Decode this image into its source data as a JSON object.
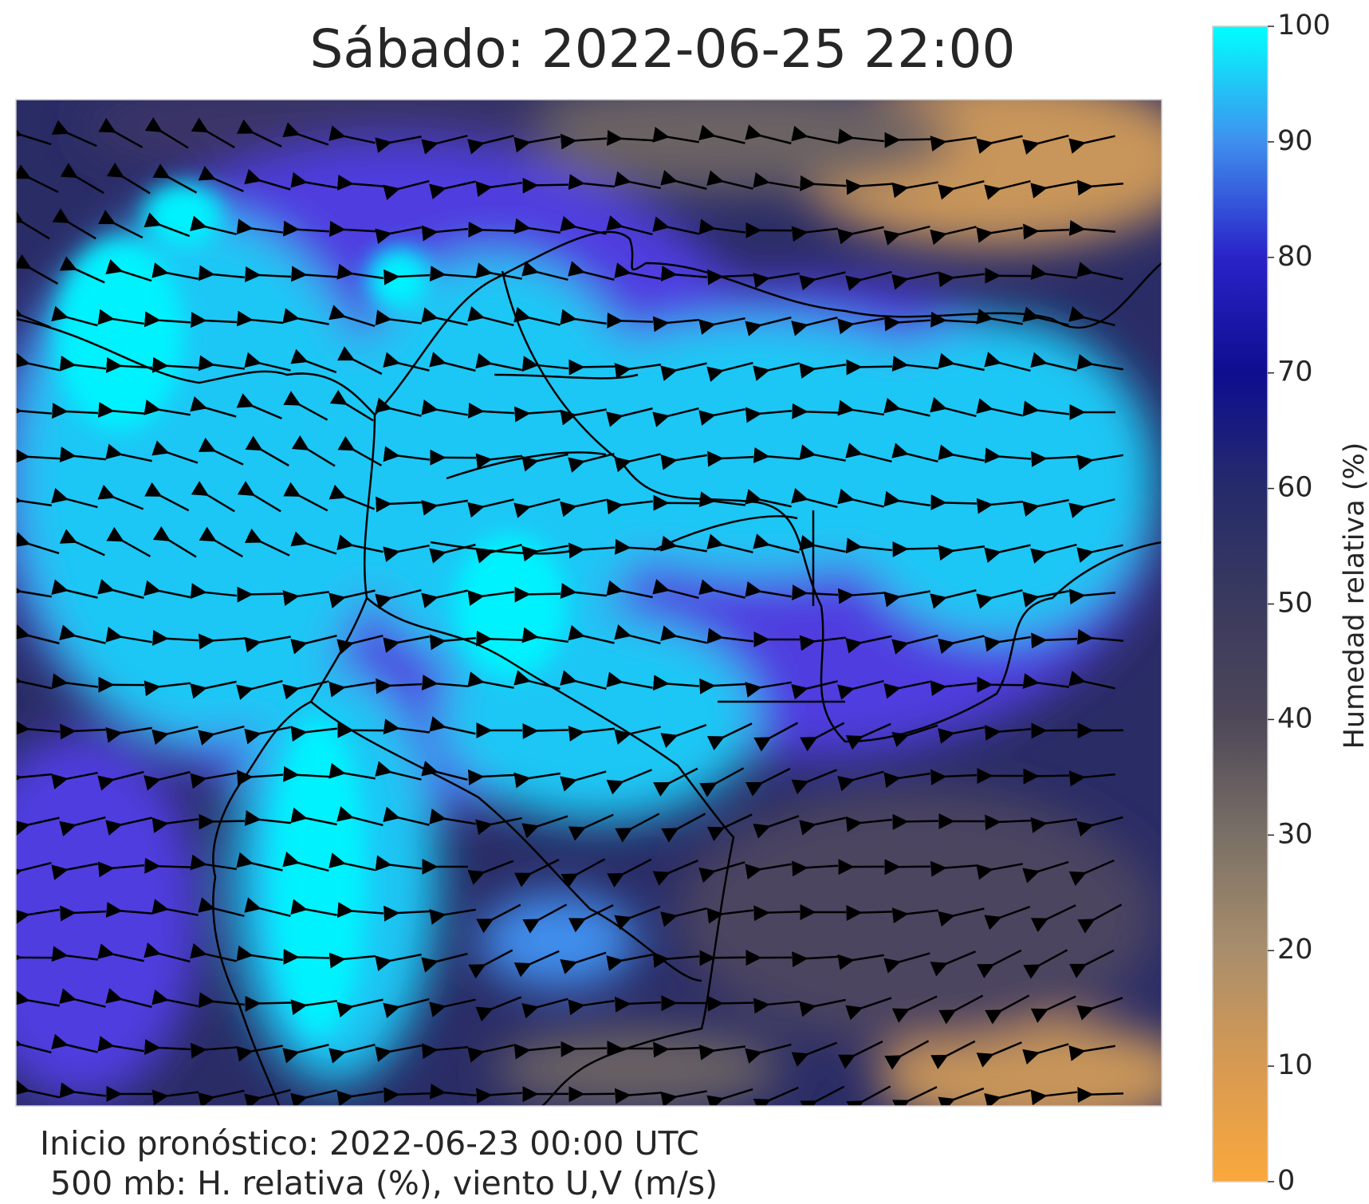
{
  "title": "Sábado: 2022-06-25 22:00",
  "colorbar": {
    "label": "Humedad relativa (%)",
    "lim": [
      0,
      100
    ],
    "ticks": [
      0,
      10,
      20,
      30,
      40,
      50,
      60,
      70,
      80,
      90,
      100
    ],
    "colors": [
      "#fba83c",
      "#d79a52",
      "#a98e6c",
      "#7a7066",
      "#4d4758",
      "#3a3a5e",
      "#262b6a",
      "#0e0e90",
      "#2a22c8",
      "#3f8fee",
      "#00ffff"
    ]
  },
  "footer": {
    "line1": "Inicio pronóstico: 2022-06-23 00:00 UTC",
    "line2": "500 mb: H. relativa (%), viento U,V (m/s)"
  }
}
